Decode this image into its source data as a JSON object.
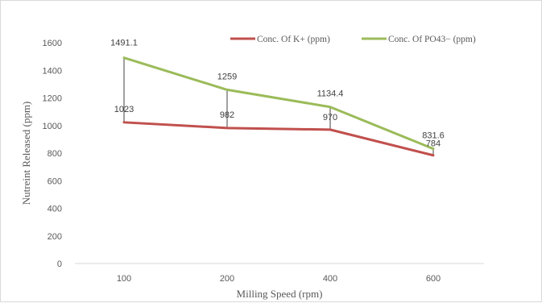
{
  "chart_data": {
    "type": "line",
    "categories": [
      "100",
      "200",
      "400",
      "600"
    ],
    "series": [
      {
        "name": "Conc. Of  K+ (ppm)",
        "values": [
          1023,
          982,
          970,
          784
        ],
        "color": "#c0504d"
      },
      {
        "name": "Conc. Of  PO43− (ppm)",
        "values": [
          1491.1,
          1259,
          1134.4,
          831.6
        ],
        "color": "#9bbb59"
      }
    ],
    "data_labels": [
      [
        "1023",
        "982",
        "970",
        "784"
      ],
      [
        "1491.1",
        "1259",
        "1134.4",
        "831.6"
      ]
    ],
    "title": "",
    "xlabel": "Milling Speed (rpm)",
    "ylabel": "Nutreint Released (ppm)",
    "ylim": [
      0,
      1600
    ],
    "yticks": [
      "0",
      "200",
      "400",
      "600",
      "800",
      "1000",
      "1200",
      "1400",
      "1600"
    ],
    "grid": false,
    "drop_lines": true,
    "legend_position": "top-right"
  }
}
